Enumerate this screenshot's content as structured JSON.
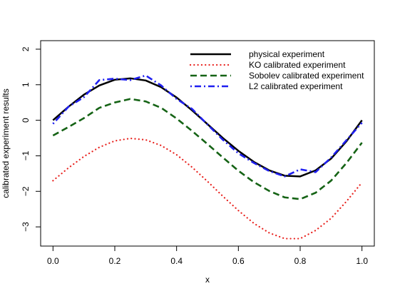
{
  "chart_data": {
    "type": "line",
    "title": "",
    "xlabel": "x",
    "ylabel": "calibrated experiment results",
    "xlim": [
      -0.04,
      1.04
    ],
    "ylim": [
      -3.54,
      2.24
    ],
    "xticks": [
      0.0,
      0.2,
      0.4,
      0.6,
      0.8,
      1.0
    ],
    "xtick_labels": [
      "0.0",
      "0.2",
      "0.4",
      "0.6",
      "0.8",
      "1.0"
    ],
    "yticks": [
      -3,
      -2,
      -1,
      0,
      1,
      2
    ],
    "ytick_labels": [
      "−3",
      "−2",
      "−1",
      "0",
      "1",
      "2"
    ],
    "grid": false,
    "legend_position": "top-right",
    "x": [
      0.0,
      0.05,
      0.1,
      0.15,
      0.2,
      0.25,
      0.3,
      0.35,
      0.4,
      0.45,
      0.5,
      0.55,
      0.6,
      0.65,
      0.7,
      0.75,
      0.8,
      0.85,
      0.9,
      0.95,
      1.0
    ],
    "series": [
      {
        "name": "physical experiment",
        "color": "#000000",
        "dash": "solid",
        "values": [
          0.0,
          0.38,
          0.72,
          0.98,
          1.14,
          1.18,
          1.12,
          0.93,
          0.64,
          0.28,
          -0.11,
          -0.5,
          -0.86,
          -1.17,
          -1.41,
          -1.56,
          -1.58,
          -1.41,
          -1.08,
          -0.59,
          0.0
        ]
      },
      {
        "name": "KO calibrated experiment",
        "color": "#e8201c",
        "dash": "dotted",
        "values": [
          -1.7,
          -1.34,
          -1.02,
          -0.76,
          -0.58,
          -0.51,
          -0.55,
          -0.71,
          -0.97,
          -1.32,
          -1.72,
          -2.14,
          -2.54,
          -2.9,
          -3.17,
          -3.33,
          -3.33,
          -3.1,
          -2.76,
          -2.28,
          -1.75
        ]
      },
      {
        "name": "Sobolev calibrated experiment",
        "color": "#156315",
        "dash": "dashed",
        "values": [
          -0.43,
          -0.19,
          0.06,
          0.35,
          0.5,
          0.6,
          0.53,
          0.35,
          0.05,
          -0.3,
          -0.67,
          -1.05,
          -1.42,
          -1.74,
          -1.99,
          -2.17,
          -2.22,
          -2.04,
          -1.7,
          -1.2,
          -0.63
        ]
      },
      {
        "name": "L2 calibrated experiment",
        "color": "#1f1ff0",
        "dash": "dashdot",
        "values": [
          -0.1,
          0.38,
          0.65,
          1.13,
          1.17,
          1.13,
          1.26,
          0.98,
          0.6,
          0.32,
          -0.12,
          -0.55,
          -0.93,
          -1.2,
          -1.43,
          -1.58,
          -1.38,
          -1.46,
          -1.05,
          -0.56,
          -0.07
        ]
      }
    ]
  }
}
